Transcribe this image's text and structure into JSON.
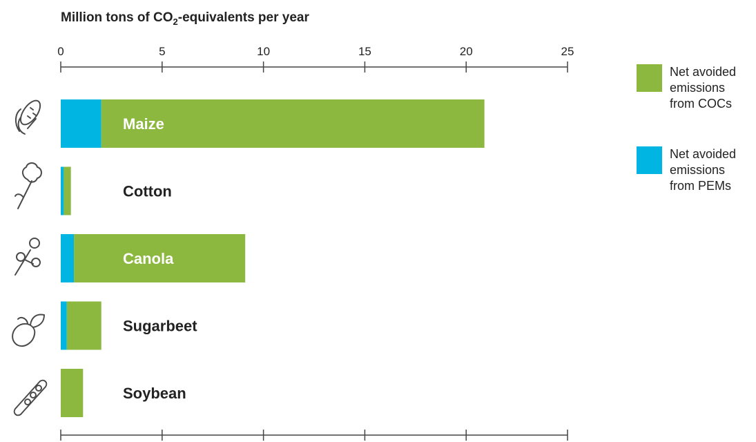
{
  "chart_data": {
    "type": "bar",
    "orientation": "horizontal",
    "stacked": true,
    "title_parts": [
      "Million tons of CO",
      "2",
      "-equivalents per year"
    ],
    "xlim": [
      0,
      25
    ],
    "x_ticks": [
      0,
      5,
      10,
      15,
      20,
      25
    ],
    "categories": [
      "Maize",
      "Cotton",
      "Canola",
      "Sugarbeet",
      "Soybean"
    ],
    "category_icons": [
      "corn-icon",
      "cotton-icon",
      "canola-icon",
      "sugarbeet-icon",
      "soybean-icon"
    ],
    "category_label_colors": [
      "#ffffff",
      "#222222",
      "#ffffff",
      "#222222",
      "#222222"
    ],
    "series": [
      {
        "name": "Net avoided emissions from PEMs",
        "color": "#00b5e2",
        "values": [
          2.0,
          0.15,
          0.65,
          0.3,
          0.0
        ]
      },
      {
        "name": "Net avoided emissions from COCs",
        "color": "#8cb840",
        "values": [
          18.9,
          0.35,
          8.45,
          1.7,
          1.1
        ]
      }
    ],
    "legend": {
      "placement": "right",
      "order": [
        1,
        0
      ],
      "entries": [
        [
          "Net avoided",
          "emissions",
          "from COCs"
        ],
        [
          "Net avoided",
          "emissions",
          "from PEMs"
        ]
      ]
    },
    "grid": false
  }
}
